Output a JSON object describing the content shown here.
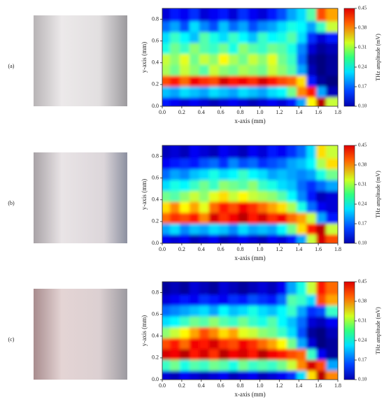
{
  "chart_data": [
    {
      "type": "heatmap",
      "panel_label": "(a)",
      "xlabel": "x-axis (mm)",
      "ylabel": "y-axis (mm)",
      "colorbar_label": "THz amplitude (mV)",
      "xlim": [
        0,
        1.8
      ],
      "ylim": [
        0,
        0.9
      ],
      "zlim": [
        0.1,
        0.45
      ],
      "xticks": [
        {
          "value": 0,
          "label": "0.0"
        },
        0.2,
        0.4,
        0.6,
        0.8,
        {
          "value": 1,
          "label": "1.0"
        },
        1.2,
        1.4,
        1.6,
        1.8
      ],
      "yticks": [
        {
          "value": 0,
          "label": "0.0"
        },
        0.2,
        0.4,
        0.6,
        0.8
      ],
      "cticks": [
        {
          "value": 0.1,
          "label": "0.10"
        },
        0.17,
        0.24,
        0.31,
        0.38,
        0.45
      ],
      "x": [
        0.05,
        0.15,
        0.25,
        0.35,
        0.45,
        0.55,
        0.65,
        0.75,
        0.85,
        0.95,
        1.05,
        1.15,
        1.25,
        1.35,
        1.45,
        1.55,
        1.65,
        1.75
      ],
      "y": [
        0.05,
        0.15,
        0.25,
        0.35,
        0.45,
        0.55,
        0.65,
        0.75,
        0.85
      ],
      "z": [
        [
          0.15,
          0.14,
          0.13,
          0.14,
          0.13,
          0.12,
          0.13,
          0.14,
          0.13,
          0.12,
          0.13,
          0.14,
          0.13,
          0.15,
          0.2,
          0.32,
          0.43,
          0.3
        ],
        [
          0.21,
          0.2,
          0.22,
          0.21,
          0.2,
          0.22,
          0.21,
          0.2,
          0.22,
          0.21,
          0.2,
          0.22,
          0.23,
          0.27,
          0.36,
          0.4,
          0.2,
          0.12
        ],
        [
          0.38,
          0.4,
          0.37,
          0.41,
          0.39,
          0.38,
          0.42,
          0.4,
          0.41,
          0.39,
          0.42,
          0.4,
          0.38,
          0.37,
          0.33,
          0.15,
          0.11,
          0.1
        ],
        [
          0.29,
          0.27,
          0.3,
          0.28,
          0.26,
          0.3,
          0.28,
          0.27,
          0.29,
          0.28,
          0.27,
          0.3,
          0.28,
          0.26,
          0.2,
          0.12,
          0.1,
          0.11
        ],
        [
          0.3,
          0.28,
          0.31,
          0.27,
          0.3,
          0.28,
          0.32,
          0.29,
          0.27,
          0.3,
          0.28,
          0.31,
          0.27,
          0.25,
          0.18,
          0.11,
          0.1,
          0.11
        ],
        [
          0.24,
          0.27,
          0.25,
          0.28,
          0.26,
          0.25,
          0.27,
          0.24,
          0.28,
          0.26,
          0.25,
          0.27,
          0.26,
          0.24,
          0.19,
          0.13,
          0.11,
          0.12
        ],
        [
          0.22,
          0.25,
          0.23,
          0.21,
          0.26,
          0.24,
          0.22,
          0.25,
          0.23,
          0.21,
          0.25,
          0.23,
          0.24,
          0.26,
          0.22,
          0.16,
          0.13,
          0.15
        ],
        [
          0.18,
          0.2,
          0.17,
          0.22,
          0.19,
          0.17,
          0.21,
          0.18,
          0.2,
          0.17,
          0.19,
          0.2,
          0.22,
          0.24,
          0.23,
          0.2,
          0.25,
          0.3
        ],
        [
          0.13,
          0.15,
          0.14,
          0.16,
          0.13,
          0.14,
          0.15,
          0.13,
          0.16,
          0.14,
          0.13,
          0.15,
          0.17,
          0.2,
          0.22,
          0.26,
          0.38,
          0.35
        ]
      ]
    },
    {
      "type": "heatmap",
      "panel_label": "(b)",
      "xlabel": "x-axis (mm)",
      "ylabel": "y-axis (mm)",
      "colorbar_label": "THz amplitude (mV)",
      "xlim": [
        0,
        1.8
      ],
      "ylim": [
        0,
        0.9
      ],
      "zlim": [
        0.1,
        0.45
      ],
      "xticks": [
        {
          "value": 0,
          "label": "0.0"
        },
        0.2,
        0.4,
        0.6,
        0.8,
        {
          "value": 1,
          "label": "1.0"
        },
        1.2,
        1.4,
        1.6,
        1.8
      ],
      "yticks": [
        {
          "value": 0,
          "label": "0.0"
        },
        0.2,
        0.4,
        0.6,
        0.8
      ],
      "cticks": [
        {
          "value": 0.1,
          "label": "0.10"
        },
        0.17,
        0.24,
        0.31,
        0.38,
        0.45
      ],
      "x": [
        0.05,
        0.15,
        0.25,
        0.35,
        0.45,
        0.55,
        0.65,
        0.75,
        0.85,
        0.95,
        1.05,
        1.15,
        1.25,
        1.35,
        1.45,
        1.55,
        1.65,
        1.75
      ],
      "y": [
        0.05,
        0.15,
        0.25,
        0.35,
        0.45,
        0.55,
        0.65,
        0.75,
        0.85
      ],
      "z": [
        [
          0.14,
          0.13,
          0.14,
          0.12,
          0.13,
          0.14,
          0.12,
          0.13,
          0.14,
          0.13,
          0.12,
          0.14,
          0.13,
          0.15,
          0.2,
          0.3,
          0.42,
          0.38
        ],
        [
          0.2,
          0.22,
          0.19,
          0.21,
          0.2,
          0.22,
          0.21,
          0.19,
          0.22,
          0.2,
          0.21,
          0.2,
          0.23,
          0.27,
          0.33,
          0.4,
          0.43,
          0.3
        ],
        [
          0.37,
          0.39,
          0.38,
          0.4,
          0.36,
          0.42,
          0.39,
          0.41,
          0.43,
          0.4,
          0.42,
          0.39,
          0.41,
          0.37,
          0.35,
          0.3,
          0.2,
          0.15
        ],
        [
          0.33,
          0.36,
          0.32,
          0.35,
          0.31,
          0.37,
          0.4,
          0.38,
          0.41,
          0.39,
          0.37,
          0.35,
          0.33,
          0.29,
          0.24,
          0.18,
          0.14,
          0.13
        ],
        [
          0.27,
          0.26,
          0.28,
          0.3,
          0.28,
          0.31,
          0.33,
          0.3,
          0.32,
          0.3,
          0.29,
          0.28,
          0.26,
          0.23,
          0.19,
          0.15,
          0.12,
          0.13
        ],
        [
          0.22,
          0.24,
          0.23,
          0.25,
          0.27,
          0.25,
          0.28,
          0.27,
          0.26,
          0.28,
          0.25,
          0.24,
          0.22,
          0.21,
          0.18,
          0.16,
          0.18,
          0.2
        ],
        [
          0.18,
          0.2,
          0.19,
          0.21,
          0.22,
          0.24,
          0.22,
          0.23,
          0.25,
          0.23,
          0.22,
          0.2,
          0.21,
          0.2,
          0.19,
          0.2,
          0.24,
          0.27
        ],
        [
          0.14,
          0.15,
          0.16,
          0.15,
          0.17,
          0.18,
          0.16,
          0.19,
          0.17,
          0.18,
          0.16,
          0.17,
          0.18,
          0.2,
          0.21,
          0.23,
          0.29,
          0.33
        ],
        [
          0.12,
          0.13,
          0.12,
          0.14,
          0.13,
          0.12,
          0.14,
          0.13,
          0.12,
          0.14,
          0.13,
          0.15,
          0.14,
          0.16,
          0.18,
          0.22,
          0.33,
          0.3
        ]
      ]
    },
    {
      "type": "heatmap",
      "panel_label": "(c)",
      "xlabel": "x-axis (mm)",
      "ylabel": "y-axis (mm)",
      "colorbar_label": "THz amplitude (mV)",
      "xlim": [
        0,
        1.8
      ],
      "ylim": [
        0,
        0.9
      ],
      "zlim": [
        0.1,
        0.45
      ],
      "xticks": [
        {
          "value": 0,
          "label": "0.0"
        },
        0.2,
        0.4,
        0.6,
        0.8,
        {
          "value": 1,
          "label": "1.0"
        },
        1.2,
        1.4,
        1.6,
        1.8
      ],
      "yticks": [
        {
          "value": 0,
          "label": "0.0"
        },
        0.2,
        0.4,
        0.6,
        0.8
      ],
      "cticks": [
        {
          "value": 0.1,
          "label": "0.10"
        },
        0.17,
        0.24,
        0.31,
        0.38,
        0.45
      ],
      "x": [
        0.05,
        0.15,
        0.25,
        0.35,
        0.45,
        0.55,
        0.65,
        0.75,
        0.85,
        0.95,
        1.05,
        1.15,
        1.25,
        1.35,
        1.45,
        1.55,
        1.65,
        1.75
      ],
      "y": [
        0.05,
        0.15,
        0.25,
        0.35,
        0.45,
        0.55,
        0.65,
        0.75,
        0.85
      ],
      "z": [
        [
          0.13,
          0.12,
          0.14,
          0.13,
          0.12,
          0.13,
          0.14,
          0.12,
          0.13,
          0.14,
          0.12,
          0.13,
          0.14,
          0.16,
          0.22,
          0.33,
          0.43,
          0.36
        ],
        [
          0.25,
          0.27,
          0.24,
          0.26,
          0.25,
          0.27,
          0.26,
          0.24,
          0.27,
          0.25,
          0.26,
          0.25,
          0.27,
          0.3,
          0.36,
          0.42,
          0.38,
          0.2
        ],
        [
          0.42,
          0.41,
          0.43,
          0.4,
          0.42,
          0.39,
          0.43,
          0.41,
          0.42,
          0.4,
          0.43,
          0.41,
          0.4,
          0.38,
          0.37,
          0.25,
          0.14,
          0.11
        ],
        [
          0.38,
          0.4,
          0.37,
          0.41,
          0.4,
          0.42,
          0.39,
          0.38,
          0.41,
          0.39,
          0.37,
          0.35,
          0.32,
          0.27,
          0.2,
          0.13,
          0.1,
          0.11
        ],
        [
          0.28,
          0.3,
          0.32,
          0.35,
          0.38,
          0.36,
          0.33,
          0.35,
          0.31,
          0.3,
          0.28,
          0.27,
          0.25,
          0.22,
          0.17,
          0.11,
          0.1,
          0.12
        ],
        [
          0.22,
          0.23,
          0.25,
          0.27,
          0.26,
          0.28,
          0.26,
          0.25,
          0.27,
          0.25,
          0.24,
          0.26,
          0.23,
          0.21,
          0.18,
          0.13,
          0.12,
          0.14
        ],
        [
          0.18,
          0.19,
          0.2,
          0.21,
          0.22,
          0.2,
          0.23,
          0.21,
          0.22,
          0.24,
          0.22,
          0.21,
          0.23,
          0.25,
          0.2,
          0.16,
          0.17,
          0.25
        ],
        [
          0.13,
          0.14,
          0.15,
          0.14,
          0.16,
          0.15,
          0.14,
          0.16,
          0.15,
          0.17,
          0.16,
          0.15,
          0.18,
          0.26,
          0.25,
          0.22,
          0.38,
          0.35
        ],
        [
          0.11,
          0.12,
          0.11,
          0.13,
          0.12,
          0.11,
          0.13,
          0.12,
          0.11,
          0.12,
          0.13,
          0.12,
          0.14,
          0.2,
          0.24,
          0.3,
          0.4,
          0.37
        ]
      ]
    }
  ]
}
